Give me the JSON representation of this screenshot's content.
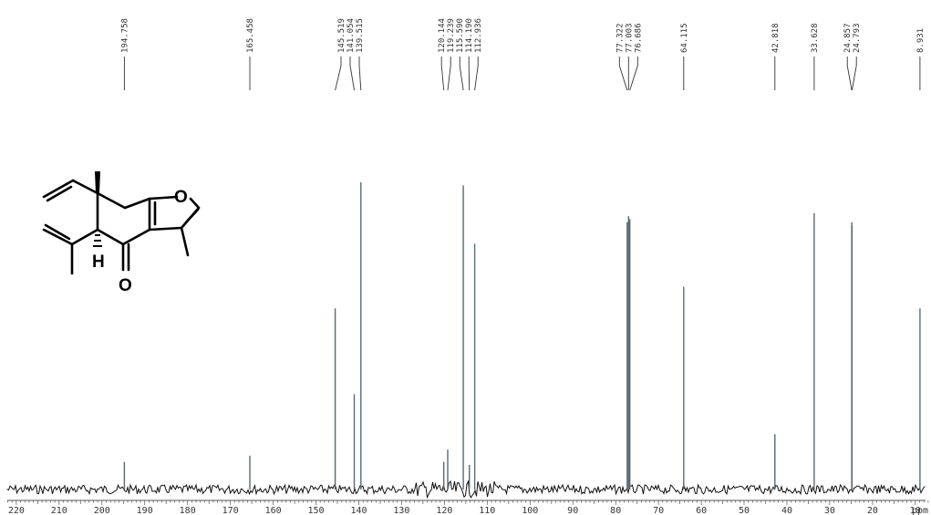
{
  "chart_data": {
    "type": "line",
    "xlabel": "ppm",
    "xlim": [
      222,
      3
    ],
    "x_ticks": [
      220,
      210,
      200,
      190,
      180,
      170,
      160,
      150,
      140,
      130,
      120,
      110,
      100,
      90,
      80,
      70,
      60,
      50,
      40,
      30,
      20,
      10
    ],
    "grid": false,
    "peaks": [
      {
        "ppm": 194.758,
        "label": "194.758",
        "height": 0.09
      },
      {
        "ppm": 165.458,
        "label": "165.458",
        "height": 0.11
      },
      {
        "ppm": 145.519,
        "label": "145.519",
        "height": 0.59
      },
      {
        "ppm": 141.054,
        "label": "141.054",
        "height": 0.31
      },
      {
        "ppm": 139.515,
        "label": "139.515",
        "height": 1.0
      },
      {
        "ppm": 120.144,
        "label": "120.144",
        "height": 0.09
      },
      {
        "ppm": 119.239,
        "label": "119.239",
        "height": 0.13
      },
      {
        "ppm": 115.59,
        "label": "115.590",
        "height": 0.99
      },
      {
        "ppm": 114.19,
        "label": "114.190",
        "height": 0.08
      },
      {
        "ppm": 112.936,
        "label": "112.936",
        "height": 0.8
      },
      {
        "ppm": 77.322,
        "label": "77.322",
        "height": 0.87
      },
      {
        "ppm": 77.003,
        "label": "77.003",
        "height": 0.89
      },
      {
        "ppm": 76.686,
        "label": "76.686",
        "height": 0.88
      },
      {
        "ppm": 64.115,
        "label": "64.115",
        "height": 0.66
      },
      {
        "ppm": 42.818,
        "label": "42.818",
        "height": 0.18
      },
      {
        "ppm": 33.628,
        "label": "33.628",
        "height": 0.9
      },
      {
        "ppm": 24.857,
        "label": "24.857",
        "height": 0.87
      },
      {
        "ppm": 24.793,
        "label": "24.793",
        "height": 0.86
      },
      {
        "ppm": 8.931,
        "label": "8.931",
        "height": 0.59
      }
    ]
  },
  "structure": {
    "atom_labels": {
      "O_ring": "O",
      "O_ketone": "O",
      "H": "H"
    }
  },
  "colors": {
    "spectrum": "#111111",
    "peak_line": "#5a6a72",
    "label_lead": "#333333"
  }
}
